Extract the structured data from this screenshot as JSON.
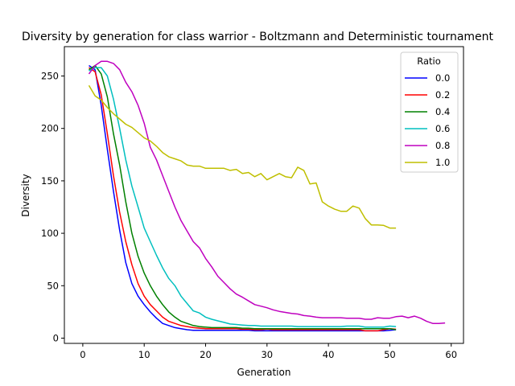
{
  "chart_data": {
    "type": "line",
    "title": "Diversity by generation for class warrior - Boltzmann and Deterministic tournament",
    "xlabel": "Generation",
    "ylabel": "Diversity",
    "xlim": [
      -3,
      62
    ],
    "ylim": [
      -5,
      278
    ],
    "xticks": [
      0,
      10,
      20,
      30,
      40,
      50,
      60
    ],
    "yticks": [
      0,
      50,
      100,
      150,
      200,
      250
    ],
    "grid": false,
    "legend": {
      "title": "Ratio",
      "placement": "top-right"
    },
    "series": [
      {
        "name": "0.0",
        "color": "#0000ff",
        "x": [
          1,
          2,
          3,
          4,
          5,
          6,
          7,
          8,
          9,
          10,
          11,
          12,
          13,
          14,
          15,
          16,
          17,
          18,
          19,
          20,
          21,
          22,
          23,
          24,
          25,
          26,
          27,
          28,
          29,
          30,
          31,
          32,
          33,
          34,
          35,
          36,
          37,
          38,
          39,
          40,
          41,
          42,
          43,
          44,
          45,
          46,
          47,
          48,
          49,
          50,
          51
        ],
        "y": [
          260,
          256,
          222,
          180,
          140,
          103,
          72,
          52,
          40,
          32,
          25,
          19,
          14,
          12,
          10,
          9,
          8,
          7.5,
          7.5,
          7.5,
          7.5,
          7.5,
          7.5,
          7.5,
          7.5,
          7.5,
          7.5,
          7,
          7,
          7,
          7,
          7,
          7,
          7,
          7,
          7,
          7,
          7,
          7,
          7,
          7,
          7,
          7,
          7,
          7,
          7,
          7,
          7,
          7,
          7.5,
          8
        ]
      },
      {
        "name": "0.2",
        "color": "#ff0000",
        "x": [
          1,
          2,
          3,
          4,
          5,
          6,
          7,
          8,
          9,
          10,
          11,
          12,
          13,
          14,
          15,
          16,
          17,
          18,
          19,
          20,
          21,
          22,
          23,
          24,
          25,
          26,
          27,
          28,
          29,
          30,
          31,
          32,
          33,
          34,
          35,
          36,
          37,
          38,
          39,
          40,
          41,
          42,
          43,
          44,
          45,
          46,
          47,
          48,
          49,
          50,
          51
        ],
        "y": [
          258,
          254,
          232,
          195,
          155,
          120,
          92,
          70,
          52,
          40,
          32,
          26,
          20,
          16,
          14,
          12,
          11,
          10,
          9.5,
          9,
          9,
          9,
          9,
          9,
          9,
          8.5,
          8.5,
          8,
          8,
          8.5,
          8,
          8,
          8,
          8,
          8,
          8,
          8,
          8,
          8,
          8,
          8,
          8,
          8,
          8,
          8,
          7,
          7,
          7,
          8,
          9,
          8.5
        ]
      },
      {
        "name": "0.4",
        "color": "#008000",
        "x": [
          1,
          2,
          3,
          4,
          5,
          6,
          7,
          8,
          9,
          10,
          11,
          12,
          13,
          14,
          15,
          16,
          17,
          18,
          19,
          20,
          21,
          22,
          23,
          24,
          25,
          26,
          27,
          28,
          29,
          30,
          31,
          32,
          33,
          34,
          35,
          36,
          37,
          38,
          39,
          40,
          41,
          42,
          43,
          44,
          45,
          46,
          47,
          48,
          49,
          50,
          51
        ],
        "y": [
          256,
          260,
          252,
          230,
          195,
          165,
          130,
          100,
          78,
          62,
          50,
          40,
          32,
          25,
          20,
          16,
          14,
          12,
          11,
          10.5,
          10,
          10,
          10,
          10,
          10,
          9.5,
          9.5,
          9,
          9,
          9,
          9,
          9,
          9,
          9,
          9,
          9,
          9,
          9,
          9,
          9,
          9,
          9,
          9,
          9,
          9,
          9,
          9,
          9,
          9,
          9,
          8
        ]
      },
      {
        "name": "0.6",
        "color": "#00bfbf",
        "x": [
          1,
          2,
          3,
          4,
          5,
          6,
          7,
          8,
          9,
          10,
          11,
          12,
          13,
          14,
          15,
          16,
          17,
          18,
          19,
          20,
          21,
          22,
          23,
          24,
          25,
          26,
          27,
          28,
          29,
          30,
          31,
          32,
          33,
          34,
          35,
          36,
          37,
          38,
          39,
          40,
          41,
          42,
          43,
          44,
          45,
          46,
          47,
          48,
          49,
          50,
          51
        ],
        "y": [
          255,
          258,
          258,
          250,
          228,
          200,
          170,
          145,
          125,
          105,
          92,
          79,
          67,
          57,
          50,
          40,
          33,
          26,
          24,
          20,
          18,
          16.5,
          15,
          13.5,
          13,
          12.5,
          12,
          12,
          11.5,
          11.5,
          11.5,
          11.5,
          11.5,
          11.5,
          11,
          11,
          11,
          11,
          11,
          11,
          11,
          11,
          11.5,
          11.5,
          11.5,
          10.5,
          10.5,
          10.5,
          10.5,
          11.5,
          11
        ]
      },
      {
        "name": "0.8",
        "color": "#bf00bf",
        "x": [
          1,
          2,
          3,
          4,
          5,
          6,
          7,
          8,
          9,
          10,
          11,
          12,
          13,
          14,
          15,
          16,
          17,
          18,
          19,
          20,
          21,
          22,
          23,
          24,
          25,
          26,
          27,
          28,
          29,
          30,
          31,
          32,
          33,
          34,
          35,
          36,
          37,
          38,
          39,
          40,
          41,
          42,
          43,
          44,
          45,
          46,
          47,
          48,
          49,
          50,
          51,
          52,
          53,
          54,
          55,
          56,
          57,
          58,
          59
        ],
        "y": [
          252,
          260,
          264,
          264,
          262,
          256,
          244,
          235,
          222,
          205,
          182,
          170,
          155,
          140,
          125,
          112,
          102,
          92,
          86,
          76,
          68,
          59,
          53,
          47,
          42,
          39,
          35.5,
          32,
          30.5,
          29,
          27,
          25.5,
          24.5,
          23.5,
          23,
          21.5,
          21,
          20,
          19.5,
          19.5,
          19.5,
          19.5,
          19,
          19,
          19,
          18,
          18,
          19.5,
          19,
          19,
          20.5,
          21,
          19.5,
          21,
          19,
          16,
          14,
          14,
          14.5
        ]
      },
      {
        "name": "1.0",
        "color": "#bfbf00",
        "x": [
          1,
          2,
          3,
          4,
          5,
          6,
          7,
          8,
          9,
          10,
          11,
          12,
          13,
          14,
          15,
          16,
          17,
          18,
          19,
          20,
          21,
          22,
          23,
          24,
          25,
          26,
          27,
          28,
          29,
          30,
          31,
          32,
          33,
          34,
          35,
          36,
          37,
          38,
          39,
          40,
          41,
          42,
          43,
          44,
          45,
          46,
          47,
          48,
          49,
          50,
          51
        ],
        "y": [
          241,
          231,
          227,
          220,
          214,
          209,
          204,
          201,
          196,
          191,
          188,
          183,
          177,
          173,
          171,
          169,
          165,
          164,
          164,
          162,
          162,
          162,
          162,
          160,
          161,
          157,
          158,
          154,
          157,
          151,
          154,
          157,
          154,
          153,
          163,
          160,
          147,
          148,
          130,
          126,
          123,
          121,
          121,
          126,
          124,
          114,
          108,
          108,
          107.5,
          105,
          105
        ]
      }
    ]
  }
}
